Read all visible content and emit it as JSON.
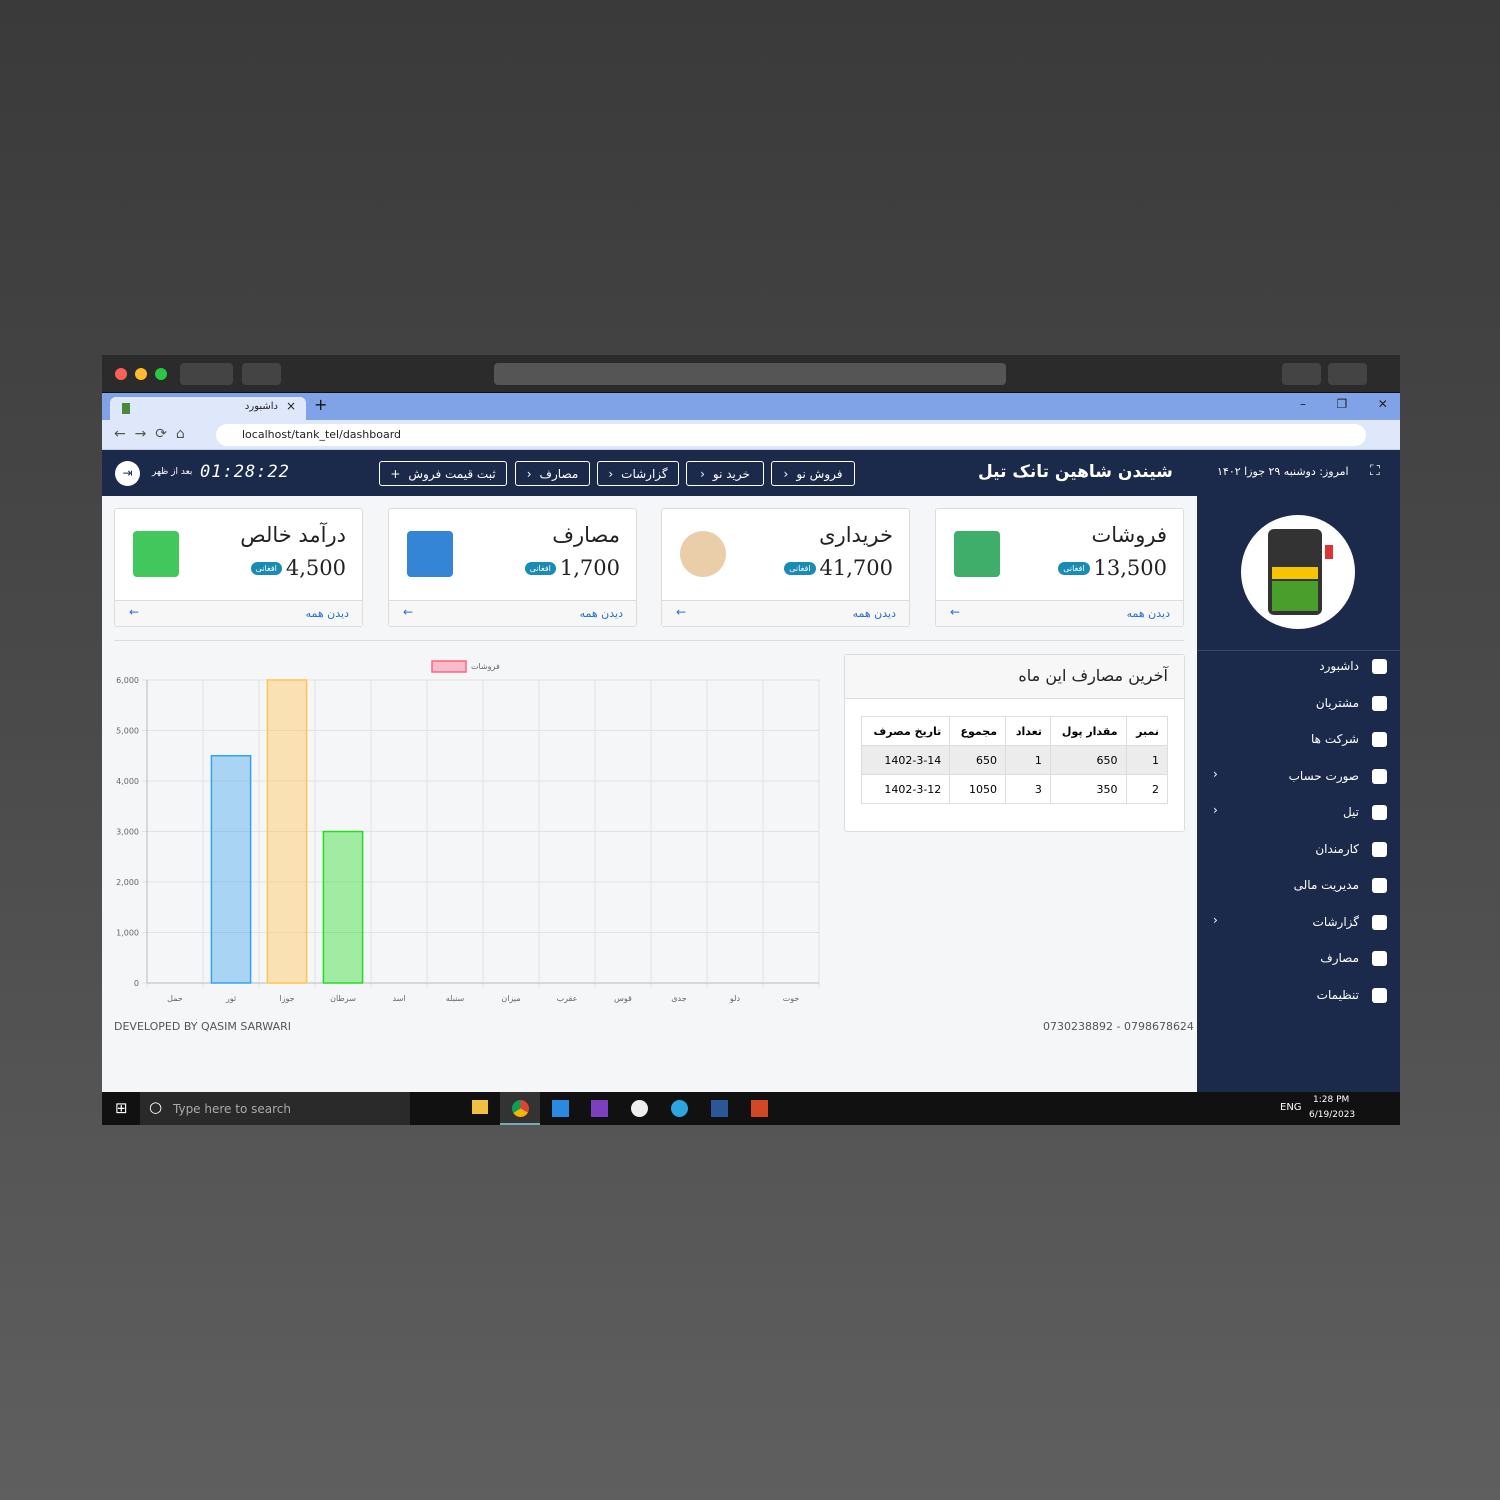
{
  "browser": {
    "tab_title": "داشبورد",
    "url": "localhost/tank_tel/dashboard"
  },
  "header": {
    "date": "امروز: دوشنبه ۲۹ جوزا ۱۴۰۲",
    "brand": "شیندن شاهین تانک تیل",
    "buttons": [
      "فروش نو",
      "خرید نو",
      "گزارشات",
      "مصارف",
      "ثبت قیمت فروش"
    ],
    "clock": "01:28:22",
    "period": "بعد از ظهر"
  },
  "cards": [
    {
      "title": "فروشات",
      "amount": "13,500",
      "currency": "افغانی",
      "link": "دیدن همه"
    },
    {
      "title": "خریداری",
      "amount": "41,700",
      "currency": "افغانی",
      "link": "دیدن همه"
    },
    {
      "title": "مصارف",
      "amount": "1,700",
      "currency": "افغانی",
      "link": "دیدن همه"
    },
    {
      "title": "درآمد خالص",
      "amount": "4,500",
      "currency": "افغانی",
      "link": "دیدن همه"
    }
  ],
  "sidebar": {
    "menu": [
      "داشبورد",
      "مشتریان",
      "شرکت ها",
      "صورت حساب",
      "تیل",
      "کارمندان",
      "مدیریت مالی",
      "گزارشات",
      "مصارف",
      "تنظیمات"
    ]
  },
  "expenses": {
    "title": "آخرین مصارف این ماه",
    "columns": [
      "نمبر",
      "مقدار پول",
      "تعداد",
      "مجموع",
      "تاریخ مصرف"
    ],
    "rows": [
      [
        1,
        650,
        1,
        650,
        "1402-3-14"
      ],
      [
        2,
        350,
        3,
        1050,
        "1402-3-12"
      ]
    ]
  },
  "footer": {
    "developer": "DEVELOPED BY QASIM SARWARI",
    "phones": "0730238892 - 0798678624"
  },
  "taskbar": {
    "search": "Type here to search",
    "lang": "ENG",
    "time": "1:28 PM",
    "date": "6/19/2023"
  },
  "chart_data": {
    "type": "bar",
    "categories": [
      "حمل",
      "ثور",
      "جوزا",
      "سرطان",
      "اسد",
      "سنبله",
      "میزان",
      "عقرب",
      "قوس",
      "جدی",
      "دلو",
      "حوت"
    ],
    "series": [
      {
        "name": "فروشات",
        "values": [
          0,
          4500,
          6000,
          3000,
          0,
          0,
          0,
          0,
          0,
          0,
          0,
          0
        ],
        "colors": [
          "#ff6384",
          "#36a2eb",
          "#ffc44d",
          "#22dd22",
          "#9966ff",
          "#ff9f40",
          "#ff6384",
          "#36a2eb",
          "#ffc44d",
          "#22dd22",
          "#9966ff",
          "#ff9f40"
        ]
      }
    ],
    "ylim": [
      0,
      6000
    ],
    "yticks": [
      0,
      {
        "value": 1000,
        "label": "1,000"
      },
      {
        "value": 2000,
        "label": "2,000"
      },
      {
        "value": 3000,
        "label": "3,000"
      },
      {
        "value": 4000,
        "label": "4,000"
      },
      {
        "value": 5000,
        "label": "5,000"
      },
      {
        "value": 6000,
        "label": "6,000"
      }
    ],
    "grid": true
  }
}
